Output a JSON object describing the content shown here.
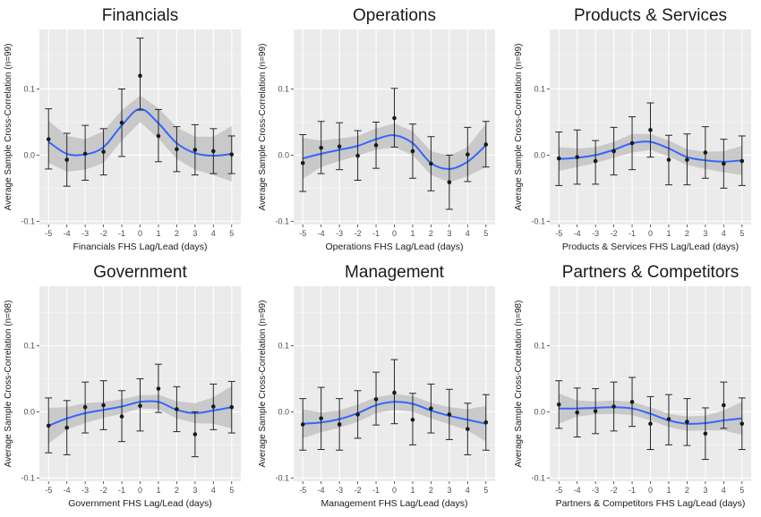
{
  "chart_data": [
    {
      "type": "scatter",
      "title": "Financials",
      "xlabel": "Financials FHS Lag/Lead (days)",
      "ylabel": "Average Sample Cross-Correlation (n=99)",
      "x": [
        -5,
        -4,
        -3,
        -2,
        -1,
        0,
        1,
        2,
        3,
        4,
        5
      ],
      "y": [
        0.024,
        -0.007,
        0.002,
        0.005,
        0.049,
        0.12,
        0.029,
        0.009,
        0.008,
        0.006,
        0.001
      ],
      "err_low": [
        -0.021,
        -0.047,
        -0.038,
        -0.03,
        -0.002,
        0.068,
        -0.01,
        -0.025,
        -0.03,
        -0.028,
        -0.028
      ],
      "err_high": [
        0.07,
        0.033,
        0.045,
        0.04,
        0.1,
        0.177,
        0.069,
        0.043,
        0.046,
        0.04,
        0.029
      ],
      "smooth": [
        0.02,
        0.002,
        0.001,
        0.012,
        0.045,
        0.07,
        0.048,
        0.018,
        0.003,
        -0.001,
        0.002
      ],
      "band_low": [
        -0.012,
        -0.025,
        -0.022,
        -0.012,
        0.022,
        0.05,
        0.025,
        -0.006,
        -0.022,
        -0.03,
        -0.04
      ],
      "band_high": [
        0.052,
        0.029,
        0.024,
        0.036,
        0.068,
        0.09,
        0.071,
        0.042,
        0.028,
        0.028,
        0.044
      ],
      "xticks": [
        "-5",
        "-4",
        "-3",
        "-2",
        "-1",
        "0",
        "1",
        "2",
        "3",
        "4",
        "5"
      ],
      "yticks": [
        "-0.1",
        "0.0",
        "0.1"
      ],
      "ylim": [
        -0.105,
        0.19
      ],
      "grid": true,
      "legend": "none"
    },
    {
      "type": "scatter",
      "title": "Operations",
      "xlabel": "Operations FHS Lag/Lead (days)",
      "ylabel": "Average Sample Cross-Correlation (n=99)",
      "x": [
        -5,
        -4,
        -3,
        -2,
        -1,
        0,
        1,
        2,
        3,
        4,
        5
      ],
      "y": [
        -0.012,
        0.011,
        0.013,
        -0.001,
        0.015,
        0.056,
        0.006,
        -0.013,
        -0.041,
        0.001,
        0.016
      ],
      "err_low": [
        -0.055,
        -0.028,
        -0.022,
        -0.038,
        -0.02,
        0.012,
        -0.035,
        -0.054,
        -0.082,
        -0.04,
        -0.018
      ],
      "err_high": [
        0.031,
        0.051,
        0.049,
        0.037,
        0.05,
        0.101,
        0.047,
        0.028,
        0.0,
        0.042,
        0.051
      ],
      "smooth": [
        -0.005,
        0.002,
        0.008,
        0.014,
        0.024,
        0.03,
        0.018,
        -0.012,
        -0.021,
        -0.01,
        0.015
      ],
      "band_low": [
        -0.036,
        -0.018,
        -0.009,
        -0.001,
        0.008,
        0.012,
        0.0,
        -0.03,
        -0.041,
        -0.032,
        -0.018
      ],
      "band_high": [
        0.026,
        0.022,
        0.025,
        0.029,
        0.04,
        0.048,
        0.036,
        0.006,
        -0.001,
        0.012,
        0.048
      ],
      "xticks": [
        "-5",
        "-4",
        "-3",
        "-2",
        "-1",
        "0",
        "1",
        "2",
        "3",
        "4",
        "5"
      ],
      "yticks": [
        "-0.1",
        "0.0",
        "0.1"
      ],
      "ylim": [
        -0.105,
        0.19
      ],
      "grid": true,
      "legend": "none"
    },
    {
      "type": "scatter",
      "title": "Products & Services",
      "xlabel": "Products & Services FHS Lag/Lead (days)",
      "ylabel": "Average Sample Cross-Correlation (n=99)",
      "x": [
        -5,
        -4,
        -3,
        -2,
        -1,
        0,
        1,
        2,
        3,
        4,
        5
      ],
      "y": [
        -0.005,
        -0.003,
        -0.009,
        0.006,
        0.018,
        0.038,
        -0.007,
        -0.007,
        0.004,
        -0.013,
        -0.009
      ],
      "err_low": [
        -0.046,
        -0.044,
        -0.044,
        -0.03,
        -0.022,
        -0.003,
        -0.045,
        -0.045,
        -0.035,
        -0.05,
        -0.046
      ],
      "err_high": [
        0.035,
        0.038,
        0.022,
        0.042,
        0.058,
        0.079,
        0.03,
        0.032,
        0.043,
        0.024,
        0.029
      ],
      "smooth": [
        -0.006,
        -0.004,
        0.0,
        0.008,
        0.018,
        0.02,
        0.01,
        -0.003,
        -0.008,
        -0.01,
        -0.008
      ],
      "band_low": [
        -0.024,
        -0.018,
        -0.012,
        -0.004,
        0.004,
        0.008,
        -0.002,
        -0.015,
        -0.021,
        -0.026,
        -0.03
      ],
      "band_high": [
        0.012,
        0.01,
        0.012,
        0.02,
        0.032,
        0.032,
        0.022,
        0.009,
        0.005,
        0.006,
        0.014
      ],
      "xticks": [
        "-5",
        "-4",
        "-3",
        "-2",
        "-1",
        "0",
        "1",
        "2",
        "3",
        "4",
        "5"
      ],
      "yticks": [
        "-0.1",
        "0.0",
        "0.1"
      ],
      "ylim": [
        -0.105,
        0.19
      ],
      "grid": true,
      "legend": "none"
    },
    {
      "type": "scatter",
      "title": "Government",
      "xlabel": "Government FHS Lag/Lead (days)",
      "ylabel": "Average Sample Cross-Correlation (n=98)",
      "x": [
        -5,
        -4,
        -3,
        -2,
        -1,
        0,
        1,
        2,
        3,
        4,
        5
      ],
      "y": [
        -0.021,
        -0.024,
        0.007,
        0.01,
        -0.007,
        0.009,
        0.035,
        0.004,
        -0.034,
        0.008,
        0.007
      ],
      "err_low": [
        -0.062,
        -0.065,
        -0.032,
        -0.027,
        -0.045,
        -0.029,
        -0.001,
        -0.03,
        -0.068,
        -0.027,
        -0.032
      ],
      "err_high": [
        0.021,
        0.017,
        0.045,
        0.047,
        0.032,
        0.05,
        0.072,
        0.038,
        0.0,
        0.042,
        0.046
      ],
      "smooth": [
        -0.021,
        -0.01,
        -0.002,
        0.003,
        0.008,
        0.015,
        0.015,
        0.003,
        -0.002,
        0.002,
        0.007
      ],
      "band_low": [
        -0.048,
        -0.027,
        -0.017,
        -0.009,
        -0.003,
        0.005,
        0.004,
        -0.01,
        -0.017,
        -0.018,
        -0.025
      ],
      "band_high": [
        0.006,
        0.007,
        0.013,
        0.015,
        0.019,
        0.025,
        0.026,
        0.016,
        0.013,
        0.022,
        0.039
      ],
      "xticks": [
        "-5",
        "-4",
        "-3",
        "-2",
        "-1",
        "0",
        "1",
        "2",
        "3",
        "4",
        "5"
      ],
      "yticks": [
        "-0.1",
        "0.0",
        "0.1"
      ],
      "ylim": [
        -0.105,
        0.19
      ],
      "grid": true,
      "legend": "none"
    },
    {
      "type": "scatter",
      "title": "Management",
      "xlabel": "Management FHS Lag/Lead (days)",
      "ylabel": "Average Sample Cross-Correlation (n=99)",
      "x": [
        -5,
        -4,
        -3,
        -2,
        -1,
        0,
        1,
        2,
        3,
        4,
        5
      ],
      "y": [
        -0.019,
        -0.01,
        -0.019,
        -0.004,
        0.019,
        0.029,
        -0.012,
        0.005,
        -0.004,
        -0.026,
        -0.016
      ],
      "err_low": [
        -0.058,
        -0.057,
        -0.058,
        -0.04,
        -0.02,
        -0.018,
        -0.05,
        -0.032,
        -0.042,
        -0.065,
        -0.058
      ],
      "err_high": [
        0.02,
        0.037,
        0.02,
        0.032,
        0.06,
        0.079,
        0.028,
        0.042,
        0.034,
        0.013,
        0.026
      ],
      "smooth": [
        -0.018,
        -0.016,
        -0.011,
        -0.002,
        0.01,
        0.015,
        0.012,
        0.002,
        -0.006,
        -0.012,
        -0.018
      ],
      "band_low": [
        -0.04,
        -0.031,
        -0.024,
        -0.015,
        -0.002,
        0.003,
        0.0,
        -0.01,
        -0.019,
        -0.028,
        -0.045
      ],
      "band_high": [
        0.004,
        -0.001,
        0.002,
        0.011,
        0.022,
        0.027,
        0.024,
        0.014,
        0.007,
        0.004,
        0.009
      ],
      "xticks": [
        "-5",
        "-4",
        "-3",
        "-2",
        "-1",
        "0",
        "1",
        "2",
        "3",
        "4",
        "5"
      ],
      "yticks": [
        "-0.1",
        "0.0",
        "0.1"
      ],
      "ylim": [
        -0.105,
        0.19
      ],
      "grid": true,
      "legend": "none"
    },
    {
      "type": "scatter",
      "title": "Partners & Competitors",
      "xlabel": "Partners & Competitors FHS Lag/Lead (days)",
      "ylabel": "Average Sample Cross-Correlation (n=98)",
      "x": [
        -5,
        -4,
        -3,
        -2,
        -1,
        0,
        1,
        2,
        3,
        4,
        5
      ],
      "y": [
        0.011,
        -0.001,
        0.001,
        0.008,
        0.015,
        -0.018,
        -0.011,
        -0.015,
        -0.033,
        0.01,
        -0.018
      ],
      "err_low": [
        -0.025,
        -0.038,
        -0.033,
        -0.029,
        -0.022,
        -0.057,
        -0.05,
        -0.051,
        -0.072,
        -0.025,
        -0.057
      ],
      "err_high": [
        0.047,
        0.036,
        0.035,
        0.045,
        0.052,
        0.023,
        0.026,
        0.02,
        0.006,
        0.045,
        0.021
      ],
      "smooth": [
        0.005,
        0.005,
        0.006,
        0.007,
        0.005,
        -0.003,
        -0.013,
        -0.018,
        -0.017,
        -0.013,
        -0.01
      ],
      "band_low": [
        -0.018,
        -0.007,
        -0.004,
        -0.003,
        -0.005,
        -0.013,
        -0.023,
        -0.029,
        -0.028,
        -0.028,
        -0.035
      ],
      "band_high": [
        0.028,
        0.017,
        0.016,
        0.017,
        0.015,
        0.007,
        -0.003,
        -0.007,
        -0.006,
        0.002,
        0.015
      ],
      "xticks": [
        "-5",
        "-4",
        "-3",
        "-2",
        "-1",
        "0",
        "1",
        "2",
        "3",
        "4",
        "5"
      ],
      "yticks": [
        "-0.1",
        "0.0",
        "0.1"
      ],
      "ylim": [
        -0.105,
        0.19
      ],
      "grid": true,
      "legend": "none"
    }
  ],
  "colors": {
    "panel_background": "#ebebeb",
    "grid_major": "#ffffff",
    "grid_minor": "#f5f5f5",
    "smooth_line": "#3366ff",
    "confidence_band": "#c3c3c3",
    "points": "#1a1a1a",
    "error_bars": "#262626",
    "text": "#1a1a1a",
    "tick_text": "#4d4d4d"
  }
}
